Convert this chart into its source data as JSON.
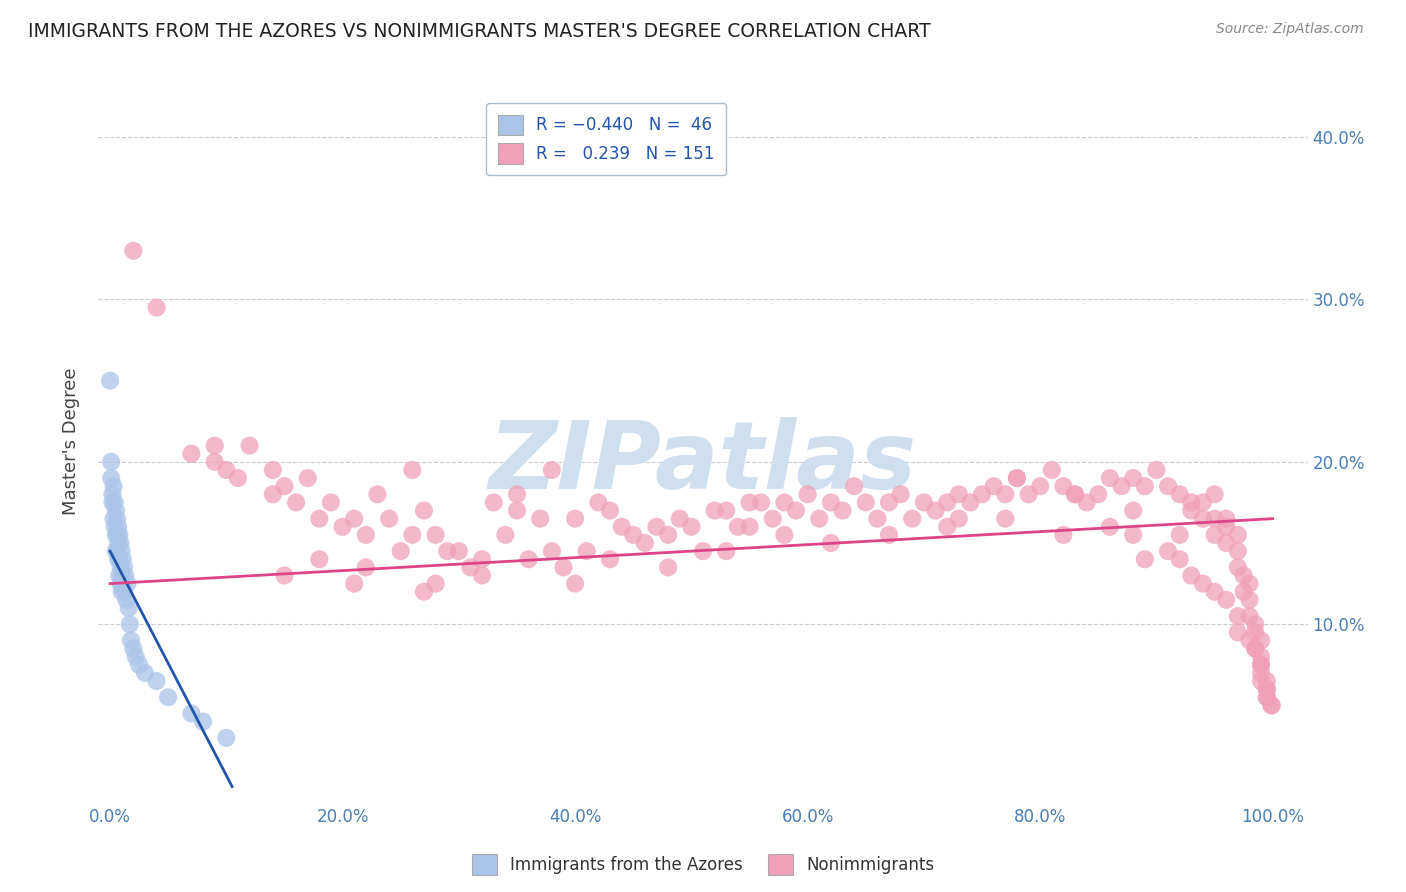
{
  "title": "IMMIGRANTS FROM THE AZORES VS NONIMMIGRANTS MASTER'S DEGREE CORRELATION CHART",
  "source_text": "Source: ZipAtlas.com",
  "ylabel": "Master's Degree",
  "xlabel_ticks": [
    "0.0%",
    "20.0%",
    "40.0%",
    "60.0%",
    "80.0%",
    "100.0%"
  ],
  "ylabel_ticks_right": [
    "10.0%",
    "20.0%",
    "30.0%",
    "40.0%"
  ],
  "xlim": [
    -0.01,
    1.03
  ],
  "ylim": [
    -0.01,
    0.435
  ],
  "blue_scatter": [
    [
      0.0,
      0.25
    ],
    [
      0.001,
      0.19
    ],
    [
      0.001,
      0.2
    ],
    [
      0.002,
      0.18
    ],
    [
      0.002,
      0.175
    ],
    [
      0.003,
      0.185
    ],
    [
      0.003,
      0.165
    ],
    [
      0.004,
      0.175
    ],
    [
      0.004,
      0.16
    ],
    [
      0.005,
      0.17
    ],
    [
      0.005,
      0.155
    ],
    [
      0.005,
      0.145
    ],
    [
      0.006,
      0.165
    ],
    [
      0.006,
      0.155
    ],
    [
      0.006,
      0.145
    ],
    [
      0.007,
      0.16
    ],
    [
      0.007,
      0.15
    ],
    [
      0.007,
      0.14
    ],
    [
      0.008,
      0.155
    ],
    [
      0.008,
      0.14
    ],
    [
      0.008,
      0.13
    ],
    [
      0.009,
      0.15
    ],
    [
      0.009,
      0.135
    ],
    [
      0.009,
      0.125
    ],
    [
      0.01,
      0.145
    ],
    [
      0.01,
      0.13
    ],
    [
      0.01,
      0.12
    ],
    [
      0.011,
      0.14
    ],
    [
      0.011,
      0.125
    ],
    [
      0.012,
      0.135
    ],
    [
      0.012,
      0.12
    ],
    [
      0.013,
      0.13
    ],
    [
      0.014,
      0.115
    ],
    [
      0.015,
      0.125
    ],
    [
      0.016,
      0.11
    ],
    [
      0.017,
      0.1
    ],
    [
      0.018,
      0.09
    ],
    [
      0.02,
      0.085
    ],
    [
      0.022,
      0.08
    ],
    [
      0.025,
      0.075
    ],
    [
      0.03,
      0.07
    ],
    [
      0.04,
      0.065
    ],
    [
      0.05,
      0.055
    ],
    [
      0.07,
      0.045
    ],
    [
      0.08,
      0.04
    ],
    [
      0.1,
      0.03
    ]
  ],
  "pink_scatter": [
    [
      0.02,
      0.33
    ],
    [
      0.04,
      0.295
    ],
    [
      0.07,
      0.205
    ],
    [
      0.09,
      0.21
    ],
    [
      0.1,
      0.195
    ],
    [
      0.12,
      0.21
    ],
    [
      0.14,
      0.195
    ],
    [
      0.15,
      0.185
    ],
    [
      0.16,
      0.175
    ],
    [
      0.17,
      0.19
    ],
    [
      0.18,
      0.165
    ],
    [
      0.19,
      0.175
    ],
    [
      0.2,
      0.16
    ],
    [
      0.21,
      0.165
    ],
    [
      0.22,
      0.155
    ],
    [
      0.23,
      0.18
    ],
    [
      0.24,
      0.165
    ],
    [
      0.25,
      0.145
    ],
    [
      0.26,
      0.155
    ],
    [
      0.27,
      0.17
    ],
    [
      0.28,
      0.155
    ],
    [
      0.29,
      0.145
    ],
    [
      0.3,
      0.145
    ],
    [
      0.31,
      0.135
    ],
    [
      0.32,
      0.14
    ],
    [
      0.33,
      0.175
    ],
    [
      0.34,
      0.155
    ],
    [
      0.35,
      0.17
    ],
    [
      0.36,
      0.14
    ],
    [
      0.37,
      0.165
    ],
    [
      0.38,
      0.145
    ],
    [
      0.39,
      0.135
    ],
    [
      0.4,
      0.165
    ],
    [
      0.41,
      0.145
    ],
    [
      0.42,
      0.175
    ],
    [
      0.43,
      0.17
    ],
    [
      0.44,
      0.16
    ],
    [
      0.45,
      0.155
    ],
    [
      0.46,
      0.15
    ],
    [
      0.47,
      0.16
    ],
    [
      0.48,
      0.155
    ],
    [
      0.49,
      0.165
    ],
    [
      0.5,
      0.16
    ],
    [
      0.51,
      0.145
    ],
    [
      0.52,
      0.17
    ],
    [
      0.53,
      0.17
    ],
    [
      0.54,
      0.16
    ],
    [
      0.55,
      0.16
    ],
    [
      0.56,
      0.175
    ],
    [
      0.57,
      0.165
    ],
    [
      0.58,
      0.175
    ],
    [
      0.59,
      0.17
    ],
    [
      0.6,
      0.18
    ],
    [
      0.61,
      0.165
    ],
    [
      0.62,
      0.175
    ],
    [
      0.63,
      0.17
    ],
    [
      0.64,
      0.185
    ],
    [
      0.65,
      0.175
    ],
    [
      0.66,
      0.165
    ],
    [
      0.67,
      0.175
    ],
    [
      0.68,
      0.18
    ],
    [
      0.69,
      0.165
    ],
    [
      0.7,
      0.175
    ],
    [
      0.71,
      0.17
    ],
    [
      0.72,
      0.175
    ],
    [
      0.73,
      0.165
    ],
    [
      0.74,
      0.175
    ],
    [
      0.75,
      0.18
    ],
    [
      0.76,
      0.185
    ],
    [
      0.77,
      0.18
    ],
    [
      0.78,
      0.19
    ],
    [
      0.79,
      0.18
    ],
    [
      0.8,
      0.185
    ],
    [
      0.81,
      0.195
    ],
    [
      0.82,
      0.185
    ],
    [
      0.83,
      0.18
    ],
    [
      0.84,
      0.175
    ],
    [
      0.85,
      0.18
    ],
    [
      0.86,
      0.19
    ],
    [
      0.87,
      0.185
    ],
    [
      0.88,
      0.19
    ],
    [
      0.89,
      0.185
    ],
    [
      0.9,
      0.195
    ],
    [
      0.91,
      0.185
    ],
    [
      0.92,
      0.18
    ],
    [
      0.93,
      0.17
    ],
    [
      0.93,
      0.175
    ],
    [
      0.94,
      0.165
    ],
    [
      0.94,
      0.175
    ],
    [
      0.95,
      0.165
    ],
    [
      0.95,
      0.155
    ],
    [
      0.95,
      0.18
    ],
    [
      0.96,
      0.165
    ],
    [
      0.96,
      0.15
    ],
    [
      0.96,
      0.16
    ],
    [
      0.97,
      0.155
    ],
    [
      0.97,
      0.145
    ],
    [
      0.97,
      0.135
    ],
    [
      0.975,
      0.13
    ],
    [
      0.975,
      0.12
    ],
    [
      0.98,
      0.125
    ],
    [
      0.98,
      0.115
    ],
    [
      0.98,
      0.105
    ],
    [
      0.985,
      0.1
    ],
    [
      0.985,
      0.095
    ],
    [
      0.985,
      0.085
    ],
    [
      0.99,
      0.09
    ],
    [
      0.99,
      0.08
    ],
    [
      0.99,
      0.075
    ],
    [
      0.99,
      0.07
    ],
    [
      0.995,
      0.065
    ],
    [
      0.995,
      0.06
    ],
    [
      0.995,
      0.055
    ],
    [
      0.999,
      0.05
    ],
    [
      0.14,
      0.18
    ],
    [
      0.09,
      0.2
    ],
    [
      0.11,
      0.19
    ],
    [
      0.26,
      0.195
    ],
    [
      0.35,
      0.18
    ],
    [
      0.4,
      0.125
    ],
    [
      0.15,
      0.13
    ],
    [
      0.21,
      0.125
    ],
    [
      0.27,
      0.12
    ],
    [
      0.22,
      0.135
    ],
    [
      0.28,
      0.125
    ],
    [
      0.18,
      0.14
    ],
    [
      0.32,
      0.13
    ],
    [
      0.43,
      0.14
    ],
    [
      0.48,
      0.135
    ],
    [
      0.53,
      0.145
    ],
    [
      0.58,
      0.155
    ],
    [
      0.62,
      0.15
    ],
    [
      0.67,
      0.155
    ],
    [
      0.72,
      0.16
    ],
    [
      0.77,
      0.165
    ],
    [
      0.82,
      0.155
    ],
    [
      0.86,
      0.16
    ],
    [
      0.88,
      0.155
    ],
    [
      0.89,
      0.14
    ],
    [
      0.91,
      0.145
    ],
    [
      0.92,
      0.14
    ],
    [
      0.93,
      0.13
    ],
    [
      0.94,
      0.125
    ],
    [
      0.95,
      0.12
    ],
    [
      0.96,
      0.115
    ],
    [
      0.97,
      0.105
    ],
    [
      0.97,
      0.095
    ],
    [
      0.98,
      0.09
    ],
    [
      0.985,
      0.085
    ],
    [
      0.99,
      0.075
    ],
    [
      0.99,
      0.065
    ],
    [
      0.995,
      0.06
    ],
    [
      0.995,
      0.055
    ],
    [
      0.999,
      0.05
    ],
    [
      0.38,
      0.195
    ],
    [
      0.55,
      0.175
    ],
    [
      0.73,
      0.18
    ],
    [
      0.78,
      0.19
    ],
    [
      0.83,
      0.18
    ],
    [
      0.88,
      0.17
    ],
    [
      0.92,
      0.155
    ]
  ],
  "blue_line_x": [
    0.0,
    0.105
  ],
  "blue_line_y": [
    0.145,
    0.0
  ],
  "pink_line_x": [
    0.0,
    1.0
  ],
  "pink_line_y": [
    0.125,
    0.165
  ],
  "scatter_color_blue": "#aac4e8",
  "scatter_color_pink": "#f0a0b8",
  "line_color_blue": "#2255aa",
  "line_color_pink": "#dd4488",
  "legend_box_blue": "#aac4e8",
  "legend_box_pink": "#f0a0b8",
  "title_color": "#222222",
  "axis_tick_color": "#4a7fb5",
  "grid_color": "#cccccc",
  "source_color": "#888888",
  "watermark_text": "ZIPatlas",
  "watermark_color": "#d0dff0",
  "background_color": "#ffffff"
}
